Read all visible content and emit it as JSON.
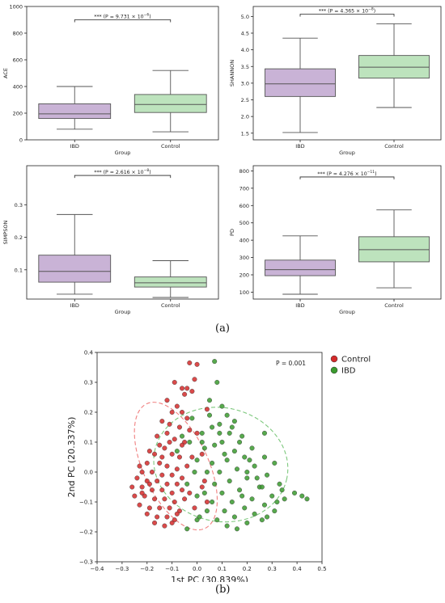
{
  "panel_labels": {
    "a": "(a)",
    "b": "(b)"
  },
  "colors": {
    "ibd_box": "#c9b3d6",
    "control_box": "#bde3bd",
    "box_edge": "#555555",
    "scatter_control": "#d42a2a",
    "scatter_ibd": "#3a9a2e",
    "ellipse_control": "#f08080",
    "ellipse_ibd": "#7dc87d"
  },
  "chart_data": [
    {
      "type": "box",
      "xlabel": "Group",
      "ylabel": "ACE",
      "categories": [
        "IBD",
        "Control"
      ],
      "ylim": [
        0,
        1000
      ],
      "yticks": [
        "0",
        "200",
        "400",
        "600",
        "800",
        "1000"
      ],
      "yticks_values": [
        0,
        200,
        400,
        600,
        800,
        1000
      ],
      "boxes": [
        {
          "whisker_low": 80,
          "q1": 160,
          "median": 195,
          "q3": 270,
          "whisker_high": 400
        },
        {
          "whisker_low": 60,
          "q1": 205,
          "median": 265,
          "q3": 340,
          "whisker_high": 520
        }
      ],
      "significance": {
        "prefix": "*** (P = 9.731",
        "times": "×",
        "base": "10",
        "exp": "−6",
        "suffix": ")",
        "y": 900
      }
    },
    {
      "type": "box",
      "xlabel": "Group",
      "ylabel": "SHANNON",
      "categories": [
        "IBD",
        "Control"
      ],
      "ylim": [
        1.3,
        5.3
      ],
      "yticks": [
        "1.5",
        "2.0",
        "2.5",
        "3.0",
        "3.5",
        "4.0",
        "4.5",
        "5.0"
      ],
      "yticks_values": [
        1.5,
        2.0,
        2.5,
        3.0,
        3.5,
        4.0,
        4.5,
        5.0
      ],
      "boxes": [
        {
          "whisker_low": 1.52,
          "q1": 2.6,
          "median": 2.98,
          "q3": 3.43,
          "whisker_high": 4.35
        },
        {
          "whisker_low": 2.27,
          "q1": 3.15,
          "median": 3.48,
          "q3": 3.83,
          "whisker_high": 4.78
        }
      ],
      "significance": {
        "prefix": "*** (P = 4.365",
        "times": "×",
        "base": "10",
        "exp": "−8",
        "suffix": ")",
        "y": 5.07
      }
    },
    {
      "type": "box",
      "xlabel": "Group",
      "ylabel": "SIMPSON",
      "categories": [
        "IBD",
        "Control"
      ],
      "ylim": [
        0.01,
        0.42
      ],
      "yticks": [
        "0.1",
        "0.2",
        "0.3"
      ],
      "yticks_values": [
        0.1,
        0.2,
        0.3
      ],
      "boxes": [
        {
          "whisker_low": 0.025,
          "q1": 0.062,
          "median": 0.095,
          "q3": 0.145,
          "whisker_high": 0.27
        },
        {
          "whisker_low": 0.015,
          "q1": 0.047,
          "median": 0.06,
          "q3": 0.078,
          "whisker_high": 0.128
        }
      ],
      "significance": {
        "prefix": "*** (P = 2.616",
        "times": "×",
        "base": "10",
        "exp": "−8",
        "suffix": ")",
        "y": 0.39
      }
    },
    {
      "type": "box",
      "xlabel": "Group",
      "ylabel": "PD",
      "categories": [
        "IBD",
        "Control"
      ],
      "ylim": [
        60,
        830
      ],
      "yticks": [
        "100",
        "200",
        "300",
        "400",
        "500",
        "600",
        "700",
        "800"
      ],
      "yticks_values": [
        100,
        200,
        300,
        400,
        500,
        600,
        700,
        800
      ],
      "boxes": [
        {
          "whisker_low": 88,
          "q1": 195,
          "median": 230,
          "q3": 285,
          "whisker_high": 425
        },
        {
          "whisker_low": 125,
          "q1": 275,
          "median": 345,
          "q3": 420,
          "whisker_high": 575
        }
      ],
      "significance": {
        "prefix": "*** (P = 4.276",
        "times": "×",
        "base": "10",
        "exp": "−11",
        "suffix": ")",
        "y": 765
      }
    },
    {
      "type": "scatter",
      "xlabel": "1st PC (30.839%)",
      "ylabel": "2nd PC (20.337%)",
      "xlim": [
        -0.4,
        0.5
      ],
      "ylim": [
        -0.3,
        0.4
      ],
      "xticks": [
        "−0.4",
        "−0.3",
        "−0.2",
        "−0.1",
        "0.0",
        "0.1",
        "0.2",
        "0.3",
        "0.4",
        "0.5"
      ],
      "xticks_values": [
        -0.4,
        -0.3,
        -0.2,
        -0.1,
        0.0,
        0.1,
        0.2,
        0.3,
        0.4,
        0.5
      ],
      "yticks": [
        "−0.3",
        "−0.2",
        "−0.1",
        "0.0",
        "0.1",
        "0.2",
        "0.3",
        "0.4"
      ],
      "yticks_values": [
        -0.3,
        -0.2,
        -0.1,
        0.0,
        0.1,
        0.2,
        0.3,
        0.4
      ],
      "annotation": "P = 0.001",
      "legend": {
        "position": "top-right-outside",
        "entries": [
          "Control",
          "IBD"
        ]
      },
      "ellipses": [
        {
          "series": "Control",
          "cx": -0.085,
          "cy": 0.02,
          "rx": 0.13,
          "ry": 0.23,
          "angle": 25
        },
        {
          "series": "IBD",
          "cx": 0.095,
          "cy": 0.025,
          "rx": 0.27,
          "ry": 0.19,
          "angle": -12
        }
      ],
      "series": [
        {
          "name": "Control",
          "points": [
            [
              -0.03,
              0.365
            ],
            [
              0.0,
              0.36
            ],
            [
              -0.01,
              0.31
            ],
            [
              -0.04,
              0.28
            ],
            [
              -0.02,
              0.27
            ],
            [
              -0.06,
              0.28
            ],
            [
              -0.09,
              0.3
            ],
            [
              -0.05,
              0.26
            ],
            [
              -0.12,
              0.24
            ],
            [
              -0.08,
              0.22
            ],
            [
              -0.1,
              0.2
            ],
            [
              -0.06,
              0.2
            ],
            [
              -0.04,
              0.18
            ],
            [
              -0.14,
              0.17
            ],
            [
              -0.11,
              0.16
            ],
            [
              -0.07,
              0.15
            ],
            [
              -0.03,
              0.14
            ],
            [
              -0.16,
              0.12
            ],
            [
              -0.12,
              0.13
            ],
            [
              -0.09,
              0.11
            ],
            [
              -0.05,
              0.1
            ],
            [
              -0.13,
              0.08
            ],
            [
              -0.17,
              0.06
            ],
            [
              -0.1,
              0.06
            ],
            [
              -0.07,
              0.05
            ],
            [
              -0.02,
              0.05
            ],
            [
              -0.2,
              0.03
            ],
            [
              -0.15,
              0.03
            ],
            [
              -0.12,
              0.02
            ],
            [
              -0.08,
              0.01
            ],
            [
              -0.04,
              0.02
            ],
            [
              -0.22,
              0.0
            ],
            [
              -0.18,
              0.0
            ],
            [
              -0.14,
              -0.01
            ],
            [
              -0.1,
              -0.01
            ],
            [
              -0.06,
              -0.02
            ],
            [
              -0.24,
              -0.02
            ],
            [
              -0.2,
              -0.03
            ],
            [
              -0.16,
              -0.03
            ],
            [
              -0.12,
              -0.04
            ],
            [
              -0.08,
              -0.04
            ],
            [
              -0.22,
              -0.05
            ],
            [
              -0.18,
              -0.06
            ],
            [
              -0.14,
              -0.06
            ],
            [
              -0.1,
              -0.07
            ],
            [
              -0.06,
              -0.06
            ],
            [
              -0.25,
              -0.08
            ],
            [
              -0.21,
              -0.08
            ],
            [
              -0.17,
              -0.09
            ],
            [
              -0.13,
              -0.09
            ],
            [
              -0.09,
              -0.1
            ],
            [
              -0.05,
              -0.09
            ],
            [
              -0.23,
              -0.11
            ],
            [
              -0.19,
              -0.12
            ],
            [
              -0.15,
              -0.12
            ],
            [
              -0.11,
              -0.12
            ],
            [
              -0.07,
              -0.13
            ],
            [
              -0.2,
              -0.14
            ],
            [
              -0.16,
              -0.15
            ],
            [
              -0.12,
              -0.15
            ],
            [
              -0.08,
              -0.14
            ],
            [
              -0.17,
              -0.17
            ],
            [
              -0.13,
              -0.18
            ],
            [
              -0.1,
              -0.17
            ],
            [
              -0.22,
              -0.07
            ],
            [
              -0.26,
              -0.05
            ],
            [
              -0.19,
              0.07
            ],
            [
              -0.15,
              0.09
            ],
            [
              -0.11,
              0.1
            ],
            [
              0.02,
              0.06
            ],
            [
              0.03,
              -0.03
            ],
            [
              0.04,
              -0.1
            ],
            [
              -0.01,
              -0.12
            ],
            [
              0.02,
              -0.05
            ],
            [
              -0.03,
              -0.07
            ],
            [
              -0.19,
              -0.04
            ],
            [
              -0.23,
              0.02
            ],
            [
              -0.06,
              0.09
            ],
            [
              0.0,
              0.13
            ],
            [
              0.04,
              0.21
            ],
            [
              -0.09,
              -0.16
            ],
            [
              -0.14,
              0.05
            ]
          ]
        },
        {
          "name": "IBD",
          "points": [
            [
              0.07,
              0.37
            ],
            [
              0.08,
              0.3
            ],
            [
              0.05,
              0.24
            ],
            [
              0.1,
              0.22
            ],
            [
              0.12,
              0.19
            ],
            [
              0.15,
              0.17
            ],
            [
              0.09,
              0.16
            ],
            [
              0.06,
              0.15
            ],
            [
              0.13,
              0.13
            ],
            [
              0.02,
              0.13
            ],
            [
              0.18,
              0.12
            ],
            [
              0.1,
              0.1
            ],
            [
              0.07,
              0.09
            ],
            [
              0.22,
              0.08
            ],
            [
              0.15,
              0.07
            ],
            [
              0.03,
              0.08
            ],
            [
              0.27,
              0.05
            ],
            [
              0.19,
              0.05
            ],
            [
              0.12,
              0.04
            ],
            [
              0.06,
              0.03
            ],
            [
              0.0,
              0.04
            ],
            [
              0.31,
              0.03
            ],
            [
              0.23,
              0.02
            ],
            [
              0.16,
              0.01
            ],
            [
              0.09,
              0.0
            ],
            [
              0.04,
              0.0
            ],
            [
              -0.01,
              0.0
            ],
            [
              0.28,
              -0.01
            ],
            [
              0.2,
              -0.02
            ],
            [
              0.13,
              -0.03
            ],
            [
              0.07,
              -0.04
            ],
            [
              0.33,
              -0.04
            ],
            [
              0.25,
              -0.05
            ],
            [
              0.17,
              -0.06
            ],
            [
              0.1,
              -0.07
            ],
            [
              0.03,
              -0.07
            ],
            [
              0.3,
              -0.08
            ],
            [
              0.22,
              -0.09
            ],
            [
              0.14,
              -0.1
            ],
            [
              0.06,
              -0.1
            ],
            [
              0.35,
              -0.09
            ],
            [
              0.27,
              -0.11
            ],
            [
              0.19,
              -0.12
            ],
            [
              0.11,
              -0.13
            ],
            [
              0.04,
              -0.13
            ],
            [
              0.31,
              -0.13
            ],
            [
              0.23,
              -0.14
            ],
            [
              0.15,
              -0.15
            ],
            [
              0.08,
              -0.16
            ],
            [
              0.28,
              -0.15
            ],
            [
              0.2,
              -0.17
            ],
            [
              0.12,
              -0.18
            ],
            [
              0.0,
              -0.16
            ],
            [
              -0.04,
              -0.19
            ],
            [
              0.16,
              -0.19
            ],
            [
              0.42,
              -0.08
            ],
            [
              0.44,
              -0.09
            ],
            [
              0.39,
              -0.07
            ],
            [
              0.26,
              -0.05
            ],
            [
              0.05,
              0.19
            ],
            [
              -0.02,
              0.18
            ],
            [
              -0.06,
              0.12
            ],
            [
              -0.08,
              0.07
            ],
            [
              -0.04,
              -0.04
            ],
            [
              0.0,
              -0.08
            ],
            [
              0.09,
              0.13
            ],
            [
              0.14,
              0.15
            ],
            [
              -0.03,
              0.1
            ],
            [
              0.17,
              0.1
            ],
            [
              0.24,
              -0.02
            ],
            [
              0.34,
              -0.06
            ],
            [
              0.21,
              0.04
            ],
            [
              0.26,
              -0.16
            ],
            [
              0.32,
              -0.1
            ],
            [
              0.01,
              -0.15
            ],
            [
              0.11,
              0.06
            ],
            [
              0.18,
              -0.08
            ],
            [
              0.02,
              0.1
            ],
            [
              0.27,
              0.13
            ],
            [
              0.2,
              0.0
            ]
          ]
        }
      ]
    }
  ]
}
